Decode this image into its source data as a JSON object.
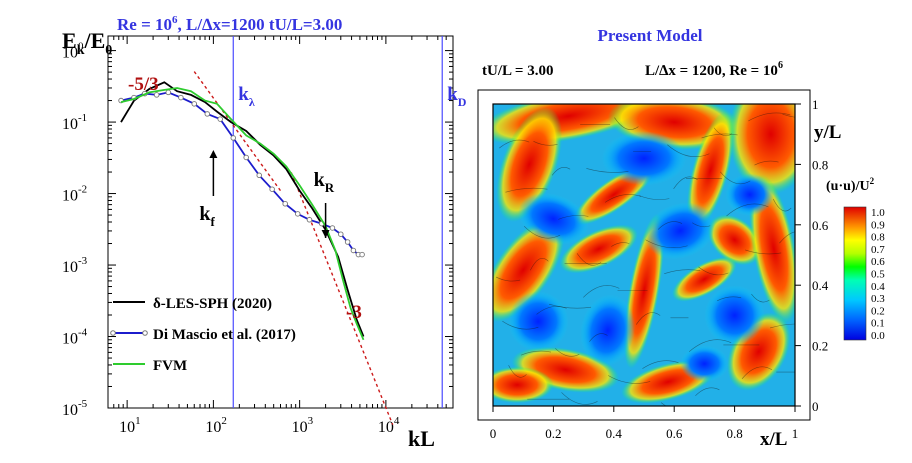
{
  "chart_data": [
    {
      "type": "line",
      "scale": "log-log",
      "ylabel_main": "E",
      "ylabel_sub1": "k",
      "ylabel_mid": "/E",
      "ylabel_sub2": "0",
      "xlabel": "kL",
      "header_re": "Re = 10",
      "header_re_exp": "6",
      "header_rest": ",  L/∆x=1200  tU/L=3.00",
      "xlim": [
        6,
        60000
      ],
      "ylim": [
        1e-05,
        1.6
      ],
      "x_ticks": [
        {
          "value": 10,
          "base": "10",
          "exp": "1"
        },
        {
          "value": 100,
          "base": "10",
          "exp": "2"
        },
        {
          "value": 1000,
          "base": "10",
          "exp": "3"
        },
        {
          "value": 10000,
          "base": "10",
          "exp": "4"
        }
      ],
      "y_ticks": [
        {
          "value": 1,
          "base": "10",
          "exp": "0"
        },
        {
          "value": 0.1,
          "base": "10",
          "exp": "-1"
        },
        {
          "value": 0.01,
          "base": "10",
          "exp": "-2"
        },
        {
          "value": 0.001,
          "base": "10",
          "exp": "-3"
        },
        {
          "value": 0.0001,
          "base": "10",
          "exp": "-4"
        },
        {
          "value": 1e-05,
          "base": "10",
          "exp": "-5"
        }
      ],
      "series": [
        {
          "name": "δ-LES-SPH (2020)",
          "color": "#000000",
          "x": [
            8.5,
            12,
            18,
            27,
            38,
            55,
            80,
            110,
            160,
            240,
            350,
            500,
            700,
            1000,
            1400,
            2000,
            2800,
            3600,
            4600,
            5500
          ],
          "y": [
            0.1,
            0.2,
            0.29,
            0.36,
            0.27,
            0.24,
            0.19,
            0.14,
            0.1,
            0.075,
            0.048,
            0.034,
            0.022,
            0.011,
            0.0062,
            0.0031,
            0.0013,
            0.00045,
            0.00017,
            0.0001
          ]
        },
        {
          "name": "Di Mascio et al. (2017)",
          "color": "#1c1ccc",
          "marker": "circle",
          "x": [
            8.5,
            12,
            16,
            22,
            30,
            42,
            60,
            85,
            120,
            170,
            240,
            340,
            480,
            680,
            950,
            1300,
            1800,
            2400,
            3000,
            3600,
            4200,
            4800,
            5300
          ],
          "y": [
            0.2,
            0.22,
            0.25,
            0.24,
            0.26,
            0.22,
            0.18,
            0.13,
            0.11,
            0.06,
            0.032,
            0.018,
            0.0115,
            0.0072,
            0.0052,
            0.0043,
            0.0038,
            0.0033,
            0.0027,
            0.0021,
            0.0016,
            0.0014,
            0.0014
          ]
        },
        {
          "name": "FVM",
          "color": "#2ecc2e",
          "x": [
            8.5,
            12,
            18,
            26,
            38,
            55,
            80,
            110,
            160,
            240,
            350,
            500,
            700,
            1000,
            1400,
            2000,
            2600,
            3200,
            3900,
            4600,
            5500
          ],
          "y": [
            0.19,
            0.21,
            0.26,
            0.28,
            0.3,
            0.27,
            0.2,
            0.18,
            0.11,
            0.065,
            0.05,
            0.036,
            0.024,
            0.013,
            0.007,
            0.0035,
            0.0016,
            0.0006,
            0.00025,
            0.00015,
            9e-05
          ]
        }
      ],
      "reference_lines": [
        {
          "label": "-5/3",
          "slope": -1.6667,
          "x0": 40,
          "y0": 1.0
        },
        {
          "label": "-3",
          "slope": -3,
          "x0": 1000,
          "y0": 0.0101
        }
      ],
      "vertical_lines": [
        {
          "x": 170,
          "label": "k",
          "sub": "λ"
        },
        {
          "x": 45000,
          "label": "k",
          "sub": "D"
        }
      ],
      "arrows": [
        {
          "label": "k",
          "sub": "f",
          "x": 100
        },
        {
          "label": "k",
          "sub": "R",
          "x": 2000
        }
      ],
      "legend_position": "bottom-left"
    },
    {
      "type": "heatmap",
      "title": "Present Model",
      "subtitle_left": "tU/L = 3.00",
      "subtitle_right": "L/∆x = 1200, Re = 10",
      "subtitle_right_exp": "6",
      "xlabel": "x/L",
      "ylabel": "y/L",
      "xlim": [
        0,
        1
      ],
      "ylim": [
        0,
        1
      ],
      "x_ticks": [
        "0",
        "0.2",
        "0.4",
        "0.6",
        "0.8",
        "1"
      ],
      "y_ticks": [
        "0",
        "0.2",
        "0.4",
        "0.6",
        "0.8",
        "1"
      ],
      "colorbar": {
        "label": "(u·u)/U",
        "label_exp": "2",
        "ticks": [
          "1.0",
          "0.9",
          "0.8",
          "0.7",
          "0.6",
          "0.5",
          "0.4",
          "0.3",
          "0.2",
          "0.1",
          "0.0"
        ],
        "colors": [
          "#0000ff",
          "#0064ff",
          "#00c8ff",
          "#00ffb4",
          "#00ff00",
          "#96ff00",
          "#ffff00",
          "#ffb400",
          "#ff6400",
          "#ff0000",
          "#dc0000"
        ]
      }
    }
  ]
}
